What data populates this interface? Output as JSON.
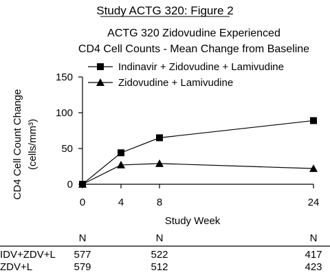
{
  "header": "Study ACTG 320: Figure 2",
  "chart_data": {
    "type": "line",
    "title": "ACTG 320 Zidovudine Experienced",
    "subtitle": "CD4 Cell Counts - Mean Change from Baseline",
    "xlabel": "Study Week",
    "ylabel": "CD4 Cell Count Change",
    "ylabel_units": "(cells/mm³)",
    "x": [
      0,
      4,
      8,
      24
    ],
    "x_ticks": [
      "0",
      "4",
      "8",
      "24"
    ],
    "y_ticks": [
      "0",
      "50",
      "100",
      "150"
    ],
    "ylim": [
      0,
      150
    ],
    "xlim": [
      0,
      24
    ],
    "grid": false,
    "legend_position": "top-right",
    "series": [
      {
        "name": "Indinavir + Zidovudine + Lamivudine",
        "marker": "square",
        "values": [
          0,
          44,
          65,
          89
        ]
      },
      {
        "name": "Zidovudine + Lamivudine",
        "marker": "triangle",
        "values": [
          0,
          27,
          29,
          22
        ]
      }
    ]
  },
  "n_table": {
    "header": [
      "N",
      "N",
      "N"
    ],
    "rows": [
      {
        "label": "IDV+ZDV+L",
        "values": [
          "577",
          "522",
          "417"
        ]
      },
      {
        "label": "ZDV+L",
        "values": [
          "579",
          "512",
          "423"
        ]
      }
    ]
  }
}
